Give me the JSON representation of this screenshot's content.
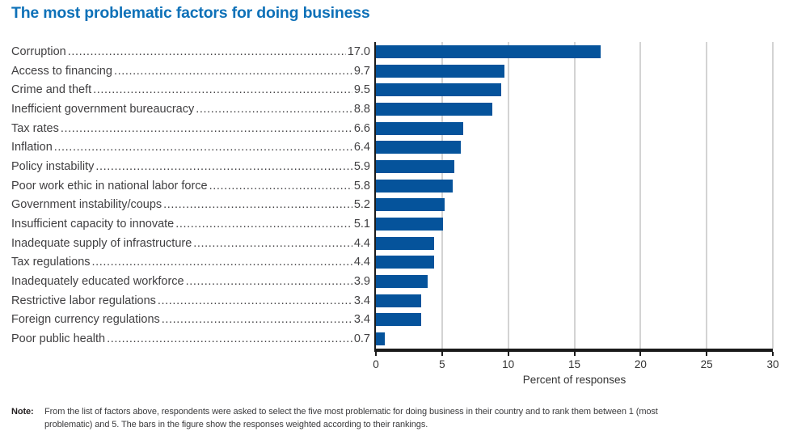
{
  "title": "The most problematic factors for doing business",
  "chart_data": {
    "type": "bar",
    "orientation": "horizontal",
    "title": "The most problematic factors for doing business",
    "categories": [
      "Corruption",
      "Access to financing",
      "Crime and theft",
      "Inefficient government bureaucracy",
      "Tax rates",
      "Inflation",
      "Policy instability",
      "Poor work ethic in national labor force",
      "Government instability/coups",
      "Insufficient capacity to innovate",
      "Inadequate supply of infrastructure",
      "Tax regulations",
      "Inadequately educated workforce",
      "Restrictive labor regulations",
      "Foreign currency regulations",
      "Poor public health"
    ],
    "values": [
      17.0,
      9.7,
      9.5,
      8.8,
      6.6,
      6.4,
      5.9,
      5.8,
      5.2,
      5.1,
      4.4,
      4.4,
      3.9,
      3.4,
      3.4,
      0.7
    ],
    "value_labels": [
      "17.0",
      "9.7",
      "9.5",
      "8.8",
      "6.6",
      "6.4",
      "5.9",
      "5.8",
      "5.2",
      "5.1",
      "4.4",
      "4.4",
      "3.9",
      "3.4",
      "3.4",
      "0.7"
    ],
    "xlabel": "Percent of responses",
    "ylabel": "",
    "xlim": [
      0,
      30
    ],
    "x_ticks": [
      0,
      5,
      10,
      15,
      20,
      25,
      30
    ],
    "grid": true,
    "legend": false,
    "bar_color": "#05539b",
    "gridline_color": "#d3d3d3",
    "title_color": "#0e71b8",
    "text_color": "#414042"
  },
  "note": {
    "label": "Note:",
    "text": "From the list of factors above, respondents were asked to select the five most problematic for doing business in their country and to rank them between 1 (most problematic) and 5. The bars in the figure show the responses weighted according to their rankings."
  }
}
